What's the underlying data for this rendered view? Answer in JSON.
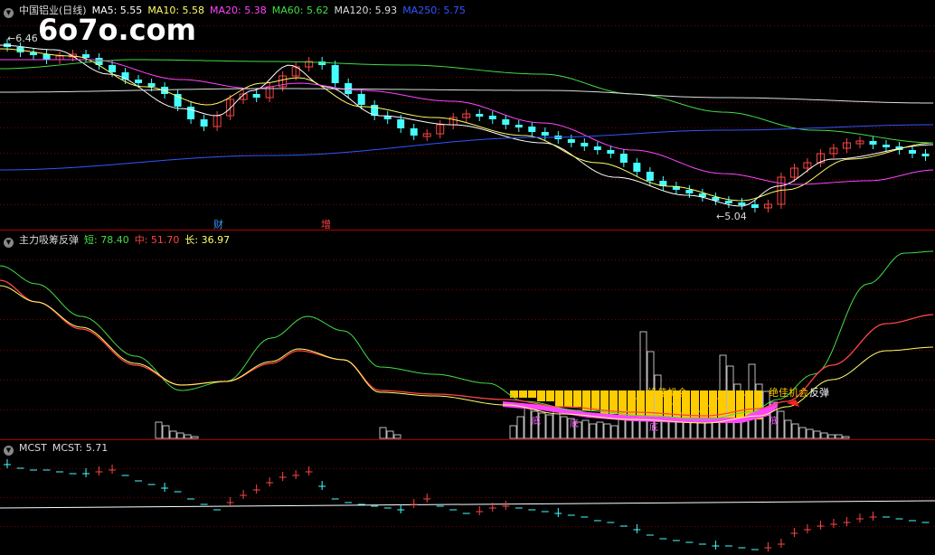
{
  "watermark": "6o7o.com",
  "panel1": {
    "title": "中国铝业(日线)",
    "ma": [
      {
        "label": "MA5: 5.55",
        "color": "#ffffff"
      },
      {
        "label": "MA10: 5.58",
        "color": "#ffff66"
      },
      {
        "label": "MA20: 5.38",
        "color": "#ff44ff"
      },
      {
        "label": "MA60: 5.62",
        "color": "#44dd44"
      },
      {
        "label": "MA120: 5.93",
        "color": "#dddddd"
      },
      {
        "label": "MA250: 5.75",
        "color": "#3355ff"
      }
    ],
    "high_label": "6.46",
    "low_label": "5.04",
    "markers": [
      "财",
      "增"
    ],
    "colors": {
      "up": "#ff4444",
      "down": "#44ffff",
      "ma5": "#ffffff",
      "ma10": "#ffff66",
      "ma20": "#ff44ff",
      "ma60": "#44dd44",
      "ma120": "#dddddd",
      "ma250": "#3355ff"
    }
  },
  "panel2": {
    "title": "主力吸筹反弹",
    "values": [
      {
        "label": "短: 78.40",
        "color": "#44dd44"
      },
      {
        "label": "中: 51.70",
        "color": "#ff4444"
      },
      {
        "label": "长: 36.97",
        "color": "#ffff66"
      }
    ],
    "ann_best1": "绝佳机会",
    "ann_best2": "绝佳机会",
    "ann_rebound": "反弹",
    "ann_small": [
      "底",
      "底",
      "底",
      "底"
    ]
  },
  "panel3": {
    "title": "MCST",
    "value": "MCST: 5.71"
  }
}
